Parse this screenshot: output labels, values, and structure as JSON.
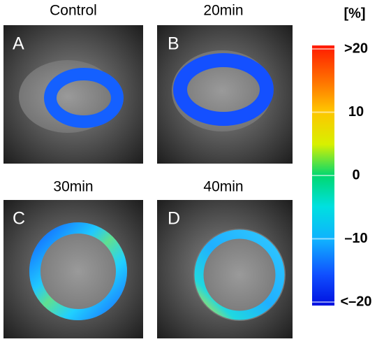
{
  "panels": [
    {
      "title": "Control",
      "letter": "A"
    },
    {
      "title": "20min",
      "letter": "B"
    },
    {
      "title": "30min",
      "letter": "C"
    },
    {
      "title": "40min",
      "letter": "D"
    }
  ],
  "colorbar": {
    "unit": "[%]",
    "range": [
      -20,
      20
    ],
    "ticks": [
      {
        "value": 20,
        "label": ">20"
      },
      10,
      0,
      {
        "value": -10,
        "label": "–10"
      },
      {
        "value": -20,
        "label": "<–20"
      }
    ]
  }
}
